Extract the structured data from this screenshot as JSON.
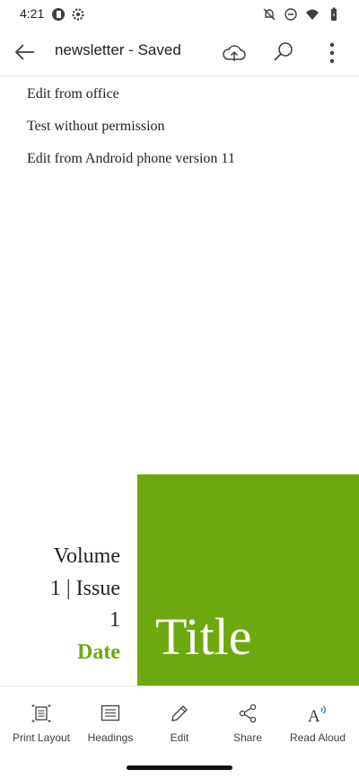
{
  "status": {
    "time": "4:21"
  },
  "appbar": {
    "title": "newsletter - Saved"
  },
  "doc": {
    "lines": [
      "Edit from office",
      "Test without permission",
      "Edit from Android phone version 11"
    ],
    "volume_lines": [
      "Volume",
      "1 | Issue",
      "1"
    ],
    "date": "Date",
    "title": "Title"
  },
  "colors": {
    "accent_green": "#6ea80f"
  },
  "bottom_nav": [
    {
      "label": "Print Layout",
      "icon": "print-layout-icon"
    },
    {
      "label": "Headings",
      "icon": "headings-icon"
    },
    {
      "label": "Edit",
      "icon": "pencil-icon"
    },
    {
      "label": "Share",
      "icon": "share-icon"
    },
    {
      "label": "Read Aloud",
      "icon": "read-aloud-icon"
    }
  ]
}
